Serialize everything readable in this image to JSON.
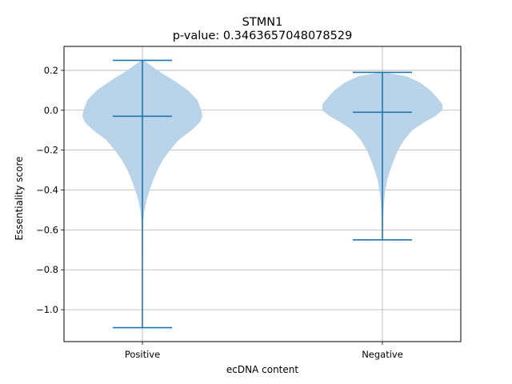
{
  "chart_data": {
    "type": "violin",
    "title": "STMN1",
    "subtitle": "p-value: 0.3463657048078529",
    "xlabel": "ecDNA content",
    "ylabel": "Essentiality score",
    "categories": [
      "Positive",
      "Negative"
    ],
    "ylim": [
      -1.16,
      0.32
    ],
    "yticks": [
      0.2,
      0.0,
      -0.2,
      -0.4,
      -0.6,
      -0.8,
      -1.0
    ],
    "ytick_labels": [
      "0.2",
      "0.0",
      "−0.2",
      "−0.4",
      "−0.6",
      "−0.8",
      "−1.0"
    ],
    "grid": true,
    "colors": {
      "violin_fill": "#b9d3e8",
      "stat_lines": "#1f77b4",
      "grid": "#b0b0b0",
      "axes": "#000000"
    },
    "series": [
      {
        "category": "Positive",
        "min": -1.09,
        "median": -0.03,
        "max": 0.25,
        "density_profile": [
          [
            0.25,
            0.02
          ],
          [
            0.22,
            0.16
          ],
          [
            0.19,
            0.3
          ],
          [
            0.15,
            0.52
          ],
          [
            0.1,
            0.76
          ],
          [
            0.05,
            0.92
          ],
          [
            0.0,
            0.98
          ],
          [
            -0.03,
            1.0
          ],
          [
            -0.06,
            0.96
          ],
          [
            -0.1,
            0.82
          ],
          [
            -0.15,
            0.6
          ],
          [
            -0.2,
            0.46
          ],
          [
            -0.25,
            0.34
          ],
          [
            -0.3,
            0.25
          ],
          [
            -0.35,
            0.18
          ],
          [
            -0.4,
            0.12
          ],
          [
            -0.45,
            0.07
          ],
          [
            -0.5,
            0.035
          ],
          [
            -0.55,
            0.018
          ],
          [
            -0.6,
            0.012
          ],
          [
            -0.7,
            0.008
          ],
          [
            -0.8,
            0.006
          ],
          [
            -0.9,
            0.005
          ],
          [
            -1.0,
            0.005
          ],
          [
            -1.05,
            0.004
          ],
          [
            -1.09,
            0.002
          ]
        ]
      },
      {
        "category": "Negative",
        "min": -0.65,
        "median": -0.01,
        "max": 0.19,
        "density_profile": [
          [
            0.19,
            0.04
          ],
          [
            0.17,
            0.4
          ],
          [
            0.14,
            0.62
          ],
          [
            0.1,
            0.8
          ],
          [
            0.06,
            0.92
          ],
          [
            0.03,
            1.0
          ],
          [
            0.0,
            1.0
          ],
          [
            -0.03,
            0.88
          ],
          [
            -0.06,
            0.7
          ],
          [
            -0.1,
            0.5
          ],
          [
            -0.15,
            0.36
          ],
          [
            -0.2,
            0.26
          ],
          [
            -0.25,
            0.19
          ],
          [
            -0.3,
            0.13
          ],
          [
            -0.35,
            0.08
          ],
          [
            -0.4,
            0.05
          ],
          [
            -0.45,
            0.03
          ],
          [
            -0.5,
            0.02
          ],
          [
            -0.55,
            0.015
          ],
          [
            -0.6,
            0.01
          ],
          [
            -0.65,
            0.004
          ]
        ]
      }
    ]
  }
}
